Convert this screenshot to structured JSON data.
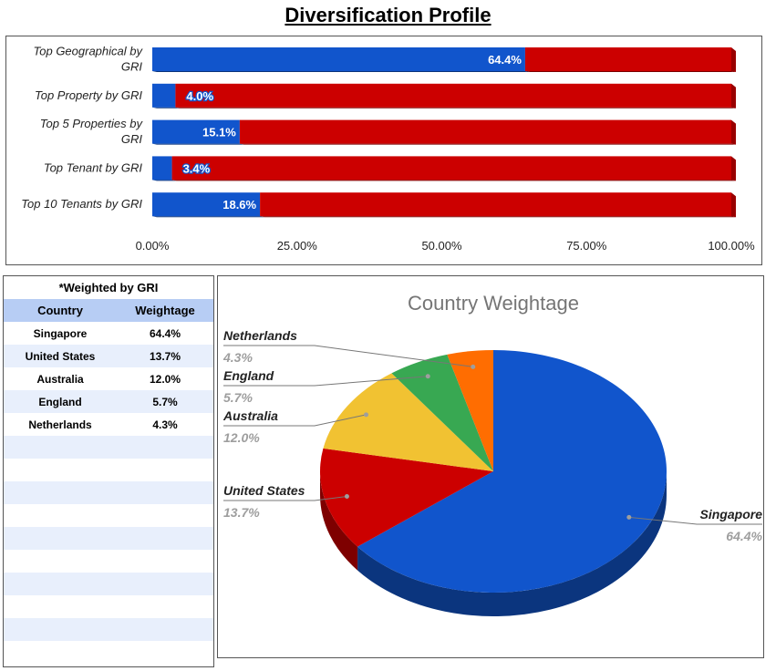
{
  "page": {
    "title": "Diversification Profile"
  },
  "chart_data": [
    {
      "type": "bar",
      "orientation": "horizontal",
      "stacked": true,
      "categories": [
        "Top Geographical by GRI",
        "Top Property by GRI",
        "Top 5 Properties by GRI",
        "Top Tenant by GRI",
        "Top 10 Tenants by GRI"
      ],
      "series": [
        {
          "values": [
            64.4,
            4.0,
            15.1,
            3.4,
            18.6
          ],
          "color": "#1155cc"
        },
        {
          "values": [
            35.6,
            96.0,
            84.9,
            96.6,
            81.4
          ],
          "color": "#cc0000"
        }
      ],
      "data_labels": [
        "64.4%",
        "4.0%",
        "15.1%",
        "3.4%",
        "18.6%"
      ],
      "xlim": [
        0,
        100
      ],
      "xticks": [
        "0.00%",
        "25.00%",
        "50.00%",
        "75.00%",
        "100.00%"
      ],
      "title": "",
      "xlabel": "",
      "ylabel": ""
    },
    {
      "type": "pie",
      "title": "Country Weightage",
      "slices": [
        {
          "label": "Singapore",
          "value": 64.4,
          "display": "64.4%",
          "color": "#1155cc"
        },
        {
          "label": "United States",
          "value": 13.7,
          "display": "13.7%",
          "color": "#cc0000"
        },
        {
          "label": "Australia",
          "value": 12.0,
          "display": "12.0%",
          "color": "#f1c232"
        },
        {
          "label": "England",
          "value": 5.7,
          "display": "5.7%",
          "color": "#38a852"
        },
        {
          "label": "Netherlands",
          "value": 4.3,
          "display": "4.3%",
          "color": "#ff6d01"
        }
      ]
    }
  ],
  "table": {
    "caption": "*Weighted by GRI",
    "headers": [
      "Country",
      "Weightage"
    ],
    "rows": [
      [
        "Singapore",
        "64.4%"
      ],
      [
        "United States",
        "13.7%"
      ],
      [
        "Australia",
        "12.0%"
      ],
      [
        "England",
        "5.7%"
      ],
      [
        "Netherlands",
        "4.3%"
      ]
    ]
  }
}
